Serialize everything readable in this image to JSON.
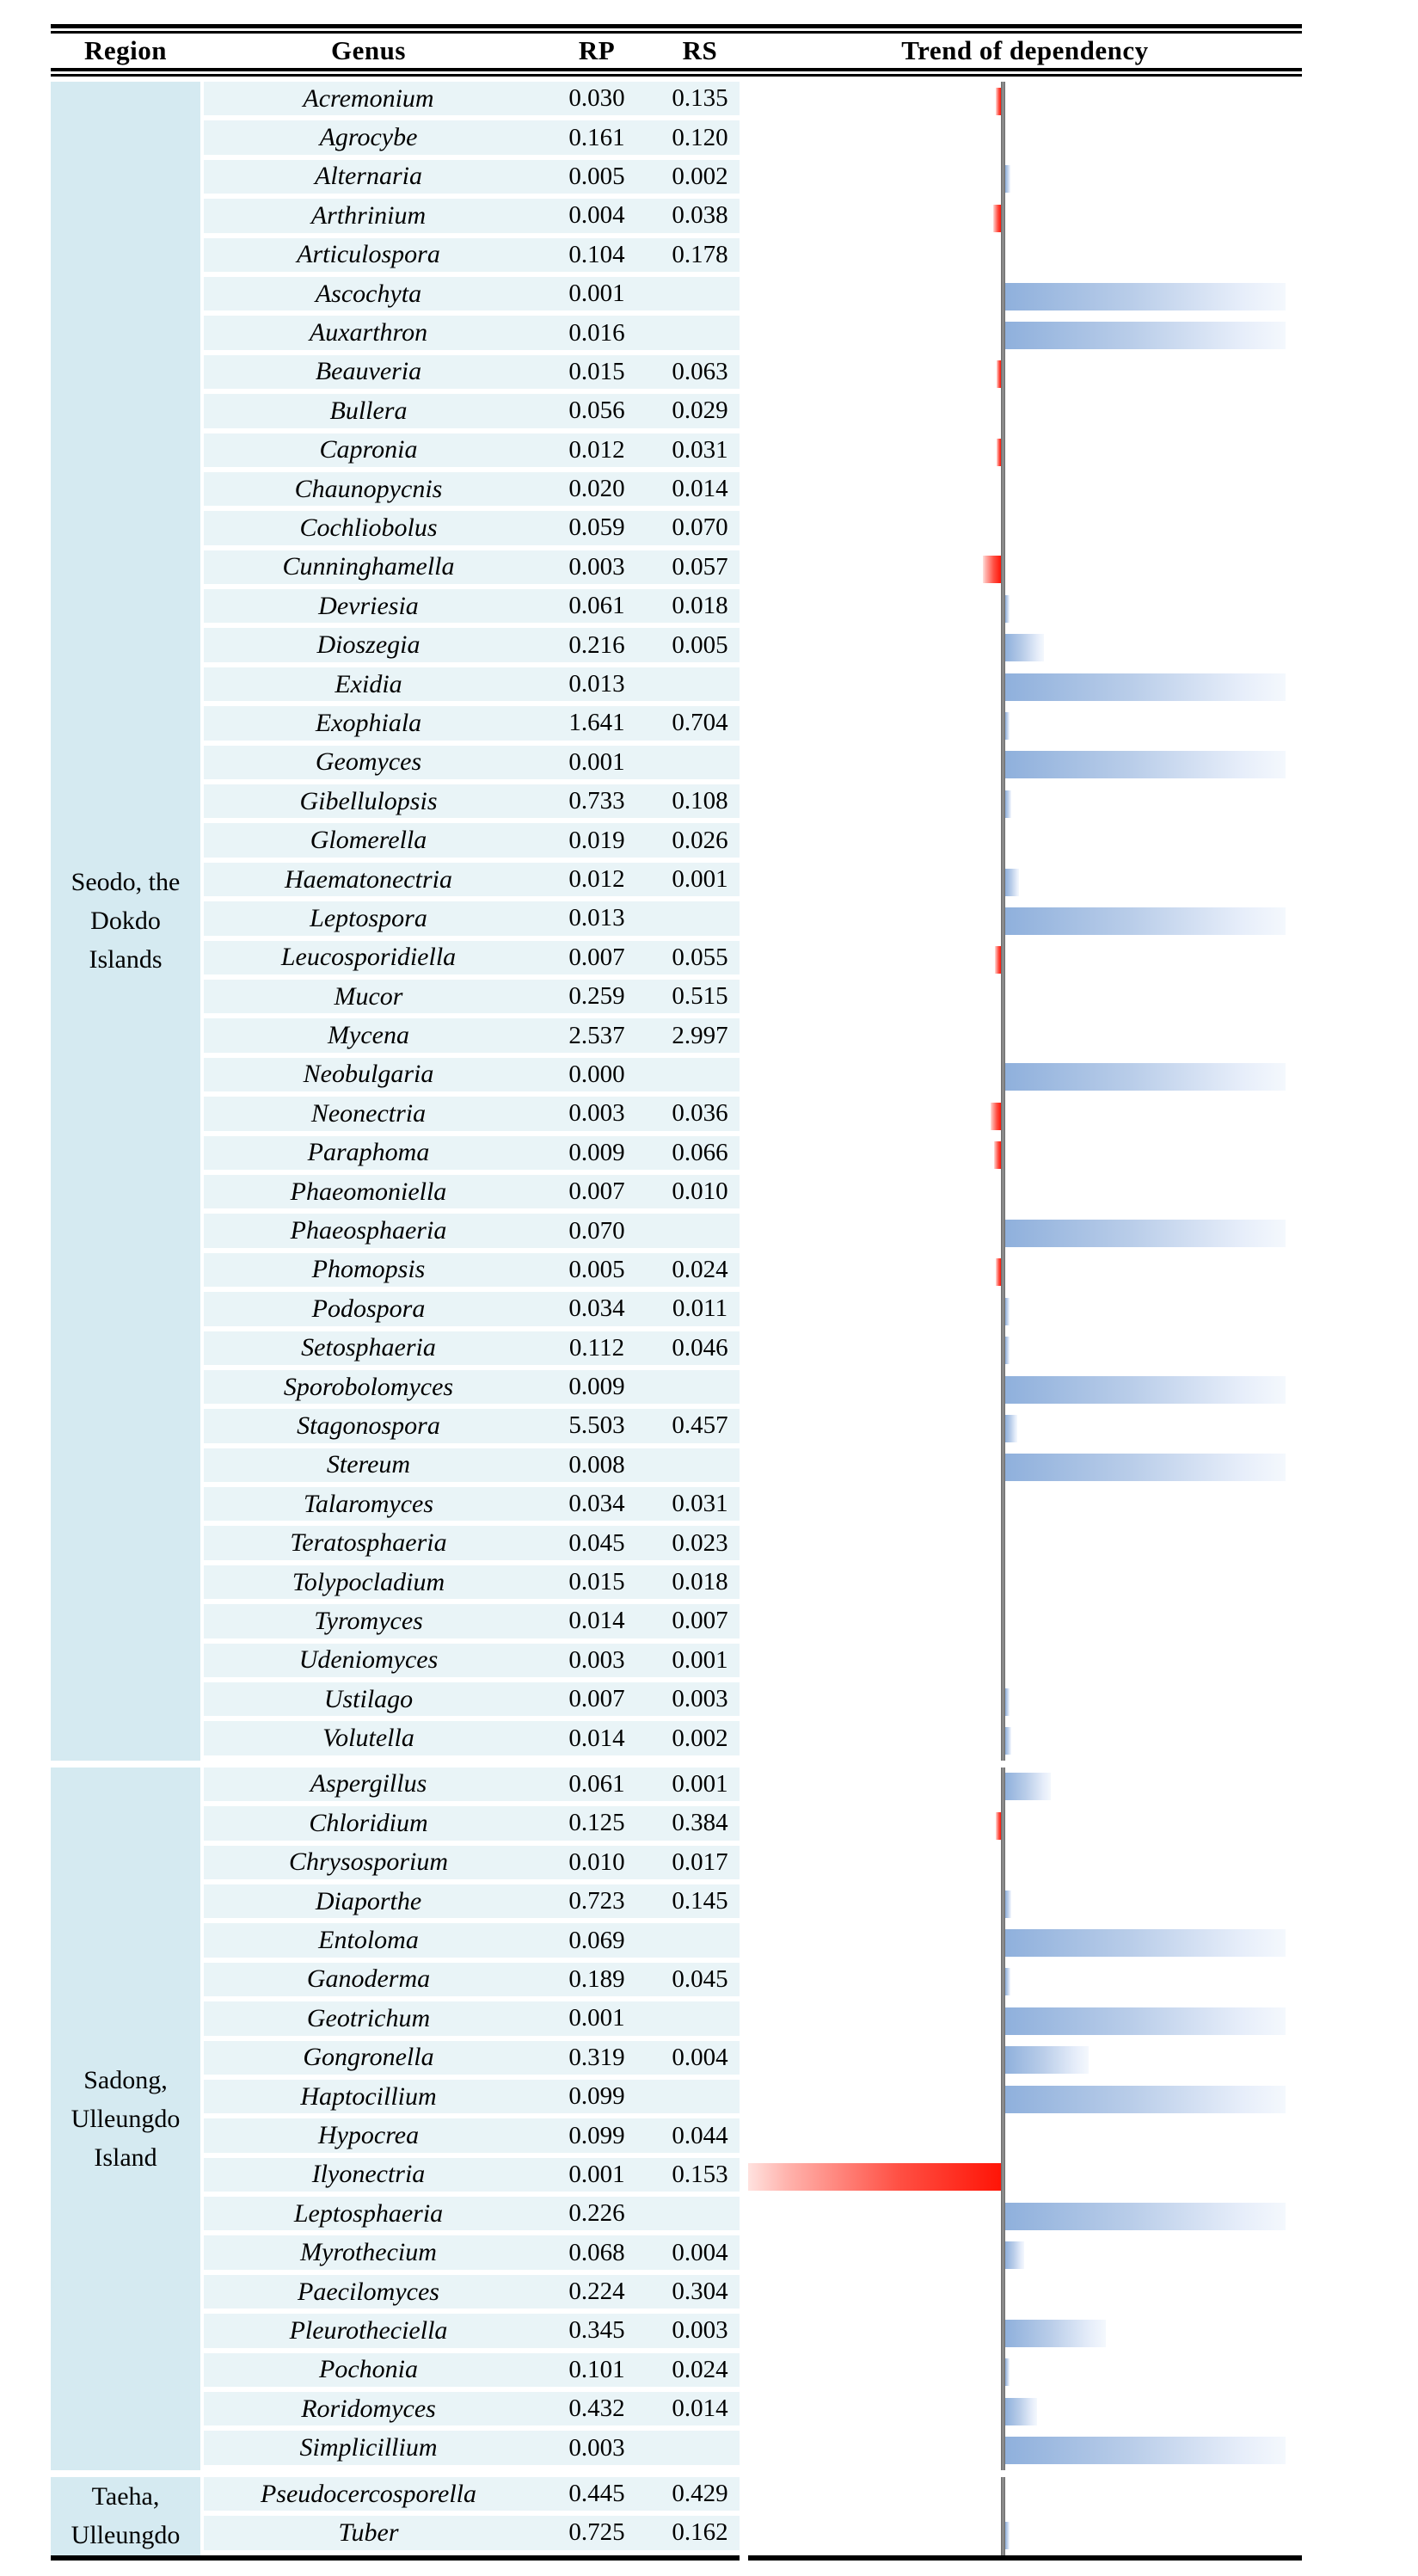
{
  "header": {
    "region": "Region",
    "genus": "Genus",
    "rp": "RP",
    "rs": "RS",
    "trend": "Trend of dependency"
  },
  "colors": {
    "region_bg": "#d5eaf1",
    "band_bg": "#e9f4f7",
    "bar_blue_start": "#8fb0dc",
    "bar_blue_end": "#f4f8fd",
    "bar_red_start": "#ff1507",
    "bar_red_end": "#ffe2df",
    "axis_gray": "#8a8a8a",
    "border_black": "#000000"
  },
  "groups": [
    {
      "region_lines": [
        "Seodo, the",
        "Dokdo",
        "Islands"
      ],
      "rows": [
        {
          "genus": "Acremonium",
          "rp": "0.030",
          "rs": "0.135",
          "bar": {
            "side": "left",
            "len": 6
          }
        },
        {
          "genus": "Agrocybe",
          "rp": "0.161",
          "rs": "0.120",
          "bar": null
        },
        {
          "genus": "Alternaria",
          "rp": "0.005",
          "rs": "0.002",
          "bar": {
            "side": "right",
            "len": 6
          }
        },
        {
          "genus": "Arthrinium",
          "rp": "0.004",
          "rs": "0.038",
          "bar": {
            "side": "left",
            "len": 9
          }
        },
        {
          "genus": "Articulospora",
          "rp": "0.104",
          "rs": "0.178",
          "bar": null
        },
        {
          "genus": "Ascochyta",
          "rp": "0.001",
          "rs": "",
          "bar": {
            "side": "right",
            "len": 326
          }
        },
        {
          "genus": "Auxarthron",
          "rp": "0.016",
          "rs": "",
          "bar": {
            "side": "right",
            "len": 326
          }
        },
        {
          "genus": "Beauveria",
          "rp": "0.015",
          "rs": "0.063",
          "bar": {
            "side": "left",
            "len": 5
          }
        },
        {
          "genus": "Bullera",
          "rp": "0.056",
          "rs": "0.029",
          "bar": null
        },
        {
          "genus": "Capronia",
          "rp": "0.012",
          "rs": "0.031",
          "bar": {
            "side": "left",
            "len": 5
          }
        },
        {
          "genus": "Chaunopycnis",
          "rp": "0.020",
          "rs": "0.014",
          "bar": null
        },
        {
          "genus": "Cochliobolus",
          "rp": "0.059",
          "rs": "0.070",
          "bar": null
        },
        {
          "genus": "Cunninghamella",
          "rp": "0.003",
          "rs": "0.057",
          "bar": {
            "side": "left",
            "len": 21
          }
        },
        {
          "genus": "Devriesia",
          "rp": "0.061",
          "rs": "0.018",
          "bar": {
            "side": "right",
            "len": 5
          }
        },
        {
          "genus": "Dioszegia",
          "rp": "0.216",
          "rs": "0.005",
          "bar": {
            "side": "right",
            "len": 45
          }
        },
        {
          "genus": "Exidia",
          "rp": "0.013",
          "rs": "",
          "bar": {
            "side": "right",
            "len": 326
          }
        },
        {
          "genus": "Exophiala",
          "rp": "1.641",
          "rs": "0.704",
          "bar": {
            "side": "right",
            "len": 5
          }
        },
        {
          "genus": "Geomyces",
          "rp": "0.001",
          "rs": "",
          "bar": {
            "side": "right",
            "len": 326
          }
        },
        {
          "genus": "Gibellulopsis",
          "rp": "0.733",
          "rs": "0.108",
          "bar": {
            "side": "right",
            "len": 7
          }
        },
        {
          "genus": "Glomerella",
          "rp": "0.019",
          "rs": "0.026",
          "bar": null
        },
        {
          "genus": "Haematonectria",
          "rp": "0.012",
          "rs": "0.001",
          "bar": {
            "side": "right",
            "len": 16
          }
        },
        {
          "genus": "Leptospora",
          "rp": "0.013",
          "rs": "",
          "bar": {
            "side": "right",
            "len": 326
          }
        },
        {
          "genus": "Leucosporidiella",
          "rp": "0.007",
          "rs": "0.055",
          "bar": {
            "side": "left",
            "len": 7
          }
        },
        {
          "genus": "Mucor",
          "rp": "0.259",
          "rs": "0.515",
          "bar": null
        },
        {
          "genus": "Mycena",
          "rp": "2.537",
          "rs": "2.997",
          "bar": null
        },
        {
          "genus": "Neobulgaria",
          "rp": "0.000",
          "rs": "",
          "bar": {
            "side": "right",
            "len": 326
          }
        },
        {
          "genus": "Neonectria",
          "rp": "0.003",
          "rs": "0.036",
          "bar": {
            "side": "left",
            "len": 12
          }
        },
        {
          "genus": "Paraphoma",
          "rp": "0.009",
          "rs": "0.066",
          "bar": {
            "side": "left",
            "len": 8
          }
        },
        {
          "genus": "Phaeomoniella",
          "rp": "0.007",
          "rs": "0.010",
          "bar": null
        },
        {
          "genus": "Phaeosphaeria",
          "rp": "0.070",
          "rs": "",
          "bar": {
            "side": "right",
            "len": 326
          }
        },
        {
          "genus": "Phomopsis",
          "rp": "0.005",
          "rs": "0.024",
          "bar": {
            "side": "left",
            "len": 6
          }
        },
        {
          "genus": "Podospora",
          "rp": "0.034",
          "rs": "0.011",
          "bar": {
            "side": "right",
            "len": 5
          }
        },
        {
          "genus": "Setosphaeria",
          "rp": "0.112",
          "rs": "0.046",
          "bar": {
            "side": "right",
            "len": 5
          }
        },
        {
          "genus": "Sporobolomyces",
          "rp": "0.009",
          "rs": "",
          "bar": {
            "side": "right",
            "len": 326
          }
        },
        {
          "genus": "Stagonospora",
          "rp": "5.503",
          "rs": "0.457",
          "bar": {
            "side": "right",
            "len": 14
          }
        },
        {
          "genus": "Stereum",
          "rp": "0.008",
          "rs": "",
          "bar": {
            "side": "right",
            "len": 326
          }
        },
        {
          "genus": "Talaromyces",
          "rp": "0.034",
          "rs": "0.031",
          "bar": null
        },
        {
          "genus": "Teratosphaeria",
          "rp": "0.045",
          "rs": "0.023",
          "bar": null
        },
        {
          "genus": "Tolypocladium",
          "rp": "0.015",
          "rs": "0.018",
          "bar": null
        },
        {
          "genus": "Tyromyces",
          "rp": "0.014",
          "rs": "0.007",
          "bar": null
        },
        {
          "genus": "Udeniomyces",
          "rp": "0.003",
          "rs": "0.001",
          "bar": null
        },
        {
          "genus": "Ustilago",
          "rp": "0.007",
          "rs": "0.003",
          "bar": {
            "side": "right",
            "len": 5
          }
        },
        {
          "genus": "Volutella",
          "rp": "0.014",
          "rs": "0.002",
          "bar": {
            "side": "right",
            "len": 7
          }
        }
      ]
    },
    {
      "region_lines": [
        "Sadong,",
        "Ulleungdo",
        "Island"
      ],
      "rows": [
        {
          "genus": "Aspergillus",
          "rp": "0.061",
          "rs": "0.001",
          "bar": {
            "side": "right",
            "len": 53
          }
        },
        {
          "genus": "Chloridium",
          "rp": "0.125",
          "rs": "0.384",
          "bar": {
            "side": "left",
            "len": 6
          }
        },
        {
          "genus": "Chrysosporium",
          "rp": "0.010",
          "rs": "0.017",
          "bar": null
        },
        {
          "genus": "Diaporthe",
          "rp": "0.723",
          "rs": "0.145",
          "bar": {
            "side": "right",
            "len": 7
          }
        },
        {
          "genus": "Entoloma",
          "rp": "0.069",
          "rs": "",
          "bar": {
            "side": "right",
            "len": 326
          }
        },
        {
          "genus": "Ganoderma",
          "rp": "0.189",
          "rs": "0.045",
          "bar": {
            "side": "right",
            "len": 6
          }
        },
        {
          "genus": "Geotrichum",
          "rp": "0.001",
          "rs": "",
          "bar": {
            "side": "right",
            "len": 326
          }
        },
        {
          "genus": "Gongronella",
          "rp": "0.319",
          "rs": "0.004",
          "bar": {
            "side": "right",
            "len": 97
          }
        },
        {
          "genus": "Haptocillium",
          "rp": "0.099",
          "rs": "",
          "bar": {
            "side": "right",
            "len": 326
          }
        },
        {
          "genus": "Hypocrea",
          "rp": "0.099",
          "rs": "0.044",
          "bar": null
        },
        {
          "genus": "Ilyonectria",
          "rp": "0.001",
          "rs": "0.153",
          "bar": {
            "side": "left",
            "len": 294
          }
        },
        {
          "genus": "Leptosphaeria",
          "rp": "0.226",
          "rs": "",
          "bar": {
            "side": "right",
            "len": 326
          }
        },
        {
          "genus": "Myrothecium",
          "rp": "0.068",
          "rs": "0.004",
          "bar": {
            "side": "right",
            "len": 22
          }
        },
        {
          "genus": "Paecilomyces",
          "rp": "0.224",
          "rs": "0.304",
          "bar": null
        },
        {
          "genus": "Pleurotheciella",
          "rp": "0.345",
          "rs": "0.003",
          "bar": {
            "side": "right",
            "len": 117
          }
        },
        {
          "genus": "Pochonia",
          "rp": "0.101",
          "rs": "0.024",
          "bar": {
            "side": "right",
            "len": 5
          }
        },
        {
          "genus": "Roridomyces",
          "rp": "0.432",
          "rs": "0.014",
          "bar": {
            "side": "right",
            "len": 37
          }
        },
        {
          "genus": "Simplicillium",
          "rp": "0.003",
          "rs": "",
          "bar": {
            "side": "right",
            "len": 326
          }
        }
      ]
    },
    {
      "region_lines": [
        "Taeha,",
        "Ulleungdo"
      ],
      "rows": [
        {
          "genus": "Pseudocercosporella",
          "rp": "0.445",
          "rs": "0.429",
          "bar": null
        },
        {
          "genus": "Tuber",
          "rp": "0.725",
          "rs": "0.162",
          "bar": {
            "side": "right",
            "len": 5
          }
        }
      ]
    }
  ],
  "chart_data": {
    "type": "bar",
    "orientation": "horizontal",
    "title": "Trend of dependency",
    "note": "Positive values = blue bars extending right of axis; negative values = red bars extending left of axis; magnitude is fraction of maximum bar length.",
    "categories": [
      "Acremonium",
      "Agrocybe",
      "Alternaria",
      "Arthrinium",
      "Articulospora",
      "Ascochyta",
      "Auxarthron",
      "Beauveria",
      "Bullera",
      "Capronia",
      "Chaunopycnis",
      "Cochliobolus",
      "Cunninghamella",
      "Devriesia",
      "Dioszegia",
      "Exidia",
      "Exophiala",
      "Geomyces",
      "Gibellulopsis",
      "Glomerella",
      "Haematonectria",
      "Leptospora",
      "Leucosporidiella",
      "Mucor",
      "Mycena",
      "Neobulgaria",
      "Neonectria",
      "Paraphoma",
      "Phaeomoniella",
      "Phaeosphaeria",
      "Phomopsis",
      "Podospora",
      "Setosphaeria",
      "Sporobolomyces",
      "Stagonospora",
      "Stereum",
      "Talaromyces",
      "Teratosphaeria",
      "Tolypocladium",
      "Tyromyces",
      "Udeniomyces",
      "Ustilago",
      "Volutella",
      "Aspergillus",
      "Chloridium",
      "Chrysosporium",
      "Diaporthe",
      "Entoloma",
      "Ganoderma",
      "Geotrichum",
      "Gongronella",
      "Haptocillium",
      "Hypocrea",
      "Ilyonectria",
      "Leptosphaeria",
      "Myrothecium",
      "Paecilomyces",
      "Pleurotheciella",
      "Pochonia",
      "Roridomyces",
      "Simplicillium",
      "Pseudocercosporella",
      "Tuber"
    ],
    "values": [
      -0.02,
      0,
      0.02,
      -0.03,
      0,
      1.0,
      1.0,
      -0.017,
      0,
      -0.017,
      0,
      0,
      -0.07,
      0.015,
      0.14,
      1.0,
      0.015,
      1.0,
      0.02,
      0,
      0.05,
      1.0,
      -0.024,
      0,
      0,
      1.0,
      -0.04,
      -0.027,
      0,
      1.0,
      -0.02,
      0.015,
      0.015,
      1.0,
      0.04,
      1.0,
      0,
      0,
      0,
      0,
      0,
      0.015,
      0.02,
      0.16,
      -0.02,
      0,
      0.02,
      1.0,
      0.02,
      1.0,
      0.3,
      1.0,
      0,
      -1.0,
      1.0,
      0.07,
      0,
      0.36,
      0.015,
      0.11,
      1.0,
      0,
      0.015
    ],
    "series": [
      {
        "name": "RP",
        "values": [
          0.03,
          0.161,
          0.005,
          0.004,
          0.104,
          0.001,
          0.016,
          0.015,
          0.056,
          0.012,
          0.02,
          0.059,
          0.003,
          0.061,
          0.216,
          0.013,
          1.641,
          0.001,
          0.733,
          0.019,
          0.012,
          0.013,
          0.007,
          0.259,
          2.537,
          0.0,
          0.003,
          0.009,
          0.007,
          0.07,
          0.005,
          0.034,
          0.112,
          0.009,
          5.503,
          0.008,
          0.034,
          0.045,
          0.015,
          0.014,
          0.003,
          0.007,
          0.014,
          0.061,
          0.125,
          0.01,
          0.723,
          0.069,
          0.189,
          0.001,
          0.319,
          0.099,
          0.099,
          0.001,
          0.226,
          0.068,
          0.224,
          0.345,
          0.101,
          0.432,
          0.003,
          0.445,
          0.725
        ]
      },
      {
        "name": "RS",
        "values": [
          0.135,
          0.12,
          0.002,
          0.038,
          0.178,
          null,
          null,
          0.063,
          0.029,
          0.031,
          0.014,
          0.07,
          0.057,
          0.018,
          0.005,
          null,
          0.704,
          null,
          0.108,
          0.026,
          0.001,
          null,
          0.055,
          0.515,
          2.997,
          null,
          0.036,
          0.066,
          0.01,
          null,
          0.024,
          0.011,
          0.046,
          null,
          0.457,
          null,
          0.031,
          0.023,
          0.018,
          0.007,
          0.001,
          0.003,
          0.002,
          0.001,
          0.384,
          0.017,
          0.145,
          null,
          0.045,
          null,
          0.004,
          null,
          0.044,
          0.153,
          null,
          0.004,
          0.304,
          0.003,
          0.024,
          0.014,
          null,
          0.429,
          0.162
        ]
      }
    ],
    "legend_position": "none",
    "grid": false
  }
}
